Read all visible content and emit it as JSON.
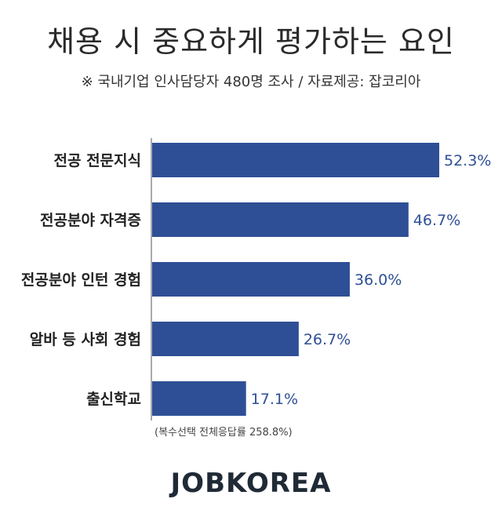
{
  "chart_data": {
    "type": "bar",
    "orientation": "horizontal",
    "title": "채용 시 중요하게 평가하는 요인",
    "subtitle": "※ 국내기업 인사담당자 480명 조사  / 자료제공: 잡코리아",
    "categories": [
      "전공 전문지식",
      "전공분야 자격증",
      "전공분야 인턴 경험",
      "알바 등 사회 경험",
      "출신학교"
    ],
    "values": [
      52.3,
      46.7,
      36.0,
      26.7,
      17.1
    ],
    "value_labels": [
      "52.3%",
      "46.7%",
      "36.0%",
      "26.7%",
      "17.1%"
    ],
    "xlim": [
      0,
      52.3
    ],
    "grid": false,
    "legend": "none",
    "footnote": "(복수선택 전체응답률 258.8%)"
  },
  "brand": {
    "logo_text": "JOBKOREA"
  },
  "colors": {
    "bar": "#2e4f96",
    "label": "#2e4f96",
    "axis": "#555555"
  }
}
